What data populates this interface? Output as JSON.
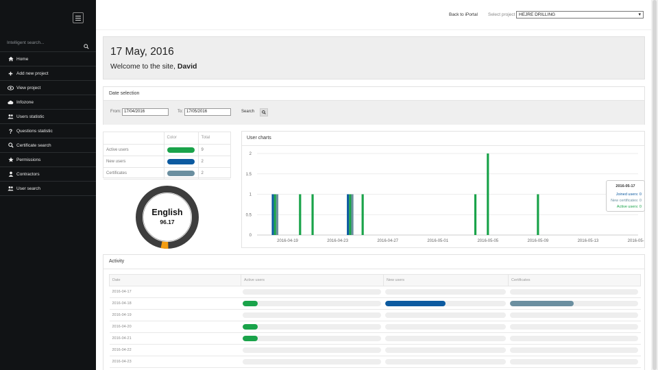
{
  "sidebar": {
    "search_placeholder": "Intelligent search...",
    "items": [
      {
        "label": "Home",
        "icon": "home-icon"
      },
      {
        "label": "Add new project",
        "icon": "plus-icon"
      },
      {
        "label": "View project",
        "icon": "eye-icon"
      },
      {
        "label": "Infozone",
        "icon": "cloud-icon"
      },
      {
        "label": "Users statistic",
        "icon": "users-icon"
      },
      {
        "label": "Questions statistic",
        "icon": "question-icon"
      },
      {
        "label": "Certificate search",
        "icon": "search-icon"
      },
      {
        "label": "Permissions",
        "icon": "star-icon"
      },
      {
        "label": "Contractors",
        "icon": "user-icon"
      },
      {
        "label": "User search",
        "icon": "users-icon"
      }
    ]
  },
  "topbar": {
    "back_link": "Back to iPortal",
    "select_label": "Select project",
    "project_selected": "HEJRE DRILLING"
  },
  "welcome": {
    "date": "17 May, 2016",
    "greeting": "Welcome to the site, ",
    "user": "David"
  },
  "date_selection": {
    "title": "Date selection",
    "from_label": "From:",
    "from_value": "17/04/2016",
    "to_label": "To:",
    "to_value": "17/05/2016",
    "search_label": "Search"
  },
  "legend": {
    "headers": [
      "",
      "Color",
      "Total"
    ],
    "rows": [
      {
        "label": "Active users",
        "color": "#1aa34a",
        "total": "9"
      },
      {
        "label": "New users",
        "color": "#0c5aa0",
        "total": "2"
      },
      {
        "label": "Certificates",
        "color": "#6b8fa0",
        "total": "2"
      }
    ]
  },
  "gauge": {
    "language": "English",
    "score": "96.17",
    "value_percent": 96.17,
    "ring_color": "#3d3d3d",
    "marker_color": "#f29c11"
  },
  "chart_data": {
    "type": "bar",
    "title": "User charts",
    "x_tick_labels": [
      "2016-04-19",
      "2016-04-23",
      "2016-04-27",
      "2016-05-01",
      "2016-05-05",
      "2016-05-09",
      "2016-05-13",
      "2016-05-17"
    ],
    "y_ticks": [
      "0",
      "0.5",
      "1",
      "1.5",
      "2"
    ],
    "ylim": [
      0,
      2
    ],
    "grid": true,
    "series": [
      {
        "name": "Joined users",
        "color": "#0c5aa0",
        "points": [
          [
            "2016-04-18",
            1
          ],
          [
            "2016-04-24",
            1
          ]
        ]
      },
      {
        "name": "Active users",
        "color": "#1aa34a",
        "points": [
          [
            "2016-04-18",
            1
          ],
          [
            "2016-04-20",
            1
          ],
          [
            "2016-04-21",
            1
          ],
          [
            "2016-04-24",
            1
          ],
          [
            "2016-04-25",
            1
          ],
          [
            "2016-05-04",
            1
          ],
          [
            "2016-05-05",
            2
          ],
          [
            "2016-05-09",
            1
          ]
        ]
      },
      {
        "name": "New certificates",
        "color": "#6b8fa0",
        "points": [
          [
            "2016-04-18",
            1
          ],
          [
            "2016-04-24",
            1
          ]
        ]
      }
    ]
  },
  "tooltip": {
    "date": "2016-05-17",
    "joined": "Joined users: 0",
    "new_certs": "New certificates: 0",
    "active": "Active users: 0"
  },
  "activity": {
    "title": "Activity",
    "headers": [
      "Date",
      "Active users",
      "New users",
      "Certificates"
    ],
    "rows": [
      {
        "date": "2016-04-17",
        "active": 0,
        "new": 0,
        "cert": 0
      },
      {
        "date": "2016-04-18",
        "active": 0.11,
        "new": 0.5,
        "cert": 0.5
      },
      {
        "date": "2016-04-19",
        "active": 0,
        "new": 0,
        "cert": 0
      },
      {
        "date": "2016-04-20",
        "active": 0.11,
        "new": 0,
        "cert": 0
      },
      {
        "date": "2016-04-21",
        "active": 0.11,
        "new": 0,
        "cert": 0
      },
      {
        "date": "2016-04-22",
        "active": 0,
        "new": 0,
        "cert": 0
      },
      {
        "date": "2016-04-23",
        "active": 0,
        "new": 0,
        "cert": 0
      }
    ]
  }
}
